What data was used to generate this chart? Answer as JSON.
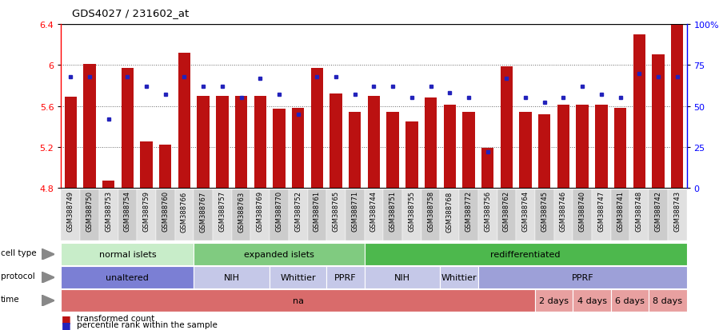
{
  "title": "GDS4027 / 231602_at",
  "samples": [
    "GSM388749",
    "GSM388750",
    "GSM388753",
    "GSM388754",
    "GSM388759",
    "GSM388760",
    "GSM388766",
    "GSM388767",
    "GSM388757",
    "GSM388763",
    "GSM388769",
    "GSM388770",
    "GSM388752",
    "GSM388761",
    "GSM388765",
    "GSM388771",
    "GSM388744",
    "GSM388751",
    "GSM388755",
    "GSM388758",
    "GSM388768",
    "GSM388772",
    "GSM388756",
    "GSM388762",
    "GSM388764",
    "GSM388745",
    "GSM388746",
    "GSM388740",
    "GSM388747",
    "GSM388741",
    "GSM388748",
    "GSM388742",
    "GSM388743"
  ],
  "bar_values": [
    5.69,
    6.01,
    4.87,
    5.97,
    5.25,
    5.22,
    6.12,
    5.7,
    5.7,
    5.7,
    5.7,
    5.57,
    5.58,
    5.97,
    5.72,
    5.54,
    5.7,
    5.54,
    5.45,
    5.68,
    5.61,
    5.54,
    5.19,
    5.99,
    5.54,
    5.52,
    5.61,
    5.61,
    5.61,
    5.58,
    6.3,
    6.1,
    6.39
  ],
  "percentile_values": [
    68,
    68,
    42,
    68,
    62,
    57,
    68,
    62,
    62,
    55,
    67,
    57,
    45,
    68,
    68,
    57,
    62,
    62,
    55,
    62,
    58,
    55,
    22,
    67,
    55,
    52,
    55,
    62,
    57,
    55,
    70,
    68,
    68
  ],
  "ylim_left": [
    4.8,
    6.4
  ],
  "ylim_right": [
    0,
    100
  ],
  "yticks_left": [
    4.8,
    5.2,
    5.6,
    6.0,
    6.4
  ],
  "yticks_right": [
    0,
    25,
    50,
    75,
    100
  ],
  "ytick_labels_left": [
    "4.8",
    "5.2",
    "5.6",
    "6",
    "6.4"
  ],
  "ytick_labels_right": [
    "0",
    "25",
    "50",
    "75",
    "100%"
  ],
  "cell_type_groups": [
    {
      "label": "normal islets",
      "start": 0,
      "end": 7,
      "color": "#c8edc9"
    },
    {
      "label": "expanded islets",
      "start": 7,
      "end": 16,
      "color": "#80cb80"
    },
    {
      "label": "redifferentiated",
      "start": 16,
      "end": 33,
      "color": "#4db84d"
    }
  ],
  "protocol_groups": [
    {
      "label": "unaltered",
      "start": 0,
      "end": 7,
      "color": "#7b7fd4"
    },
    {
      "label": "NIH",
      "start": 7,
      "end": 11,
      "color": "#c5c8e8"
    },
    {
      "label": "Whittier",
      "start": 11,
      "end": 14,
      "color": "#c5c8e8"
    },
    {
      "label": "PPRF",
      "start": 14,
      "end": 16,
      "color": "#c5c8e8"
    },
    {
      "label": "NIH",
      "start": 16,
      "end": 20,
      "color": "#c5c8e8"
    },
    {
      "label": "Whittier",
      "start": 20,
      "end": 22,
      "color": "#c5c8e8"
    },
    {
      "label": "PPRF",
      "start": 22,
      "end": 33,
      "color": "#9da0d8"
    }
  ],
  "time_groups": [
    {
      "label": "na",
      "start": 0,
      "end": 25,
      "color": "#d96b6b"
    },
    {
      "label": "2 days",
      "start": 25,
      "end": 27,
      "color": "#e8a0a0"
    },
    {
      "label": "4 days",
      "start": 27,
      "end": 29,
      "color": "#e8a0a0"
    },
    {
      "label": "6 days",
      "start": 29,
      "end": 31,
      "color": "#e8a0a0"
    },
    {
      "label": "8 days",
      "start": 31,
      "end": 33,
      "color": "#e8a0a0"
    }
  ],
  "bar_color": "#bb1111",
  "dot_color": "#2222bb",
  "background_color": "#ffffff",
  "grid_color": "#666666",
  "bar_bottom": 4.8,
  "row_labels": [
    "cell type",
    "protocol",
    "time"
  ]
}
